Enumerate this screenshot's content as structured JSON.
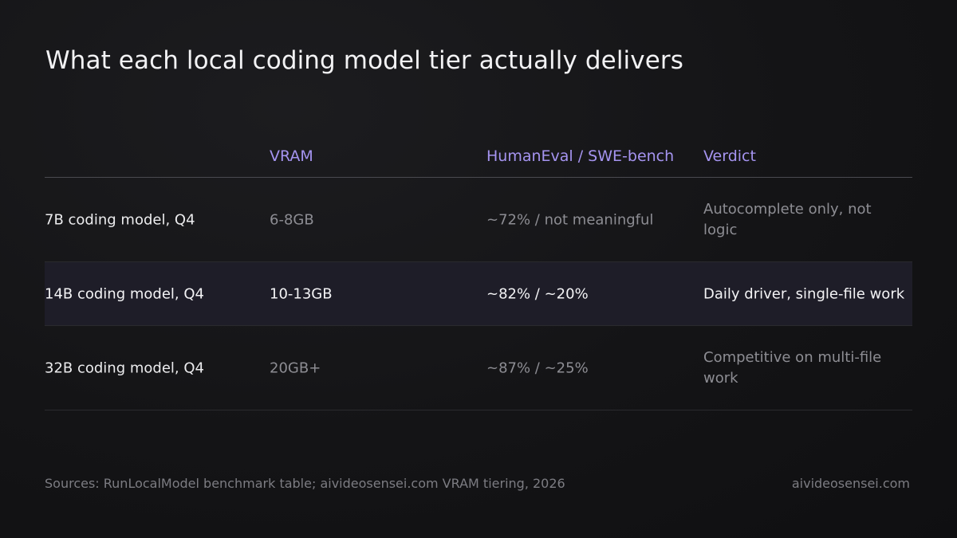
{
  "title": "What each local coding model tier actually delivers",
  "table": {
    "headers": [
      "",
      "VRAM",
      "HumanEval / SWE-bench",
      "Verdict"
    ],
    "rows": [
      {
        "model": "7B coding model, Q4",
        "vram": "6-8GB",
        "scores": "~72% / not meaningful",
        "verdict": "Autocomplete only, not logic",
        "highlighted": false
      },
      {
        "model": "14B coding model, Q4",
        "vram": "10-13GB",
        "scores": "~82% / ~20%",
        "verdict": "Daily driver, single-file work",
        "highlighted": true
      },
      {
        "model": "32B coding model, Q4",
        "vram": "20GB+",
        "scores": "~87% / ~25%",
        "verdict": "Competitive on multi-file work",
        "highlighted": false
      }
    ]
  },
  "footer": {
    "sources": "Sources: RunLocalModel benchmark table; aivideosensei.com VRAM tiering, 2026",
    "site": "aivideosensei.com"
  },
  "colors": {
    "accent": "#a594f0",
    "highlight_row": "#1e1d28",
    "background": "#141416"
  }
}
